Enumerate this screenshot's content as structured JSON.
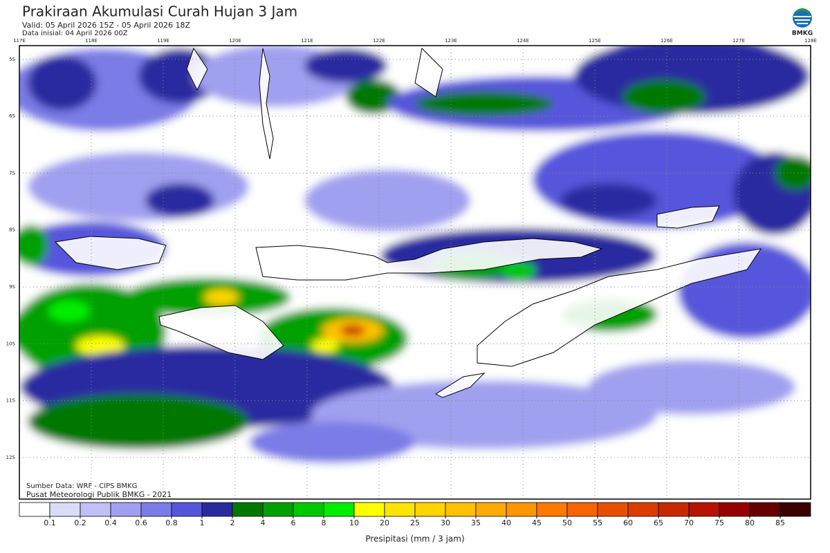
{
  "header": {
    "title": "Prakiraan Akumulasi Curah Hujan 3 Jam",
    "valid": "Valid: 05 April 2026 15Z - 05 April 2026 18Z",
    "initial": "Data inisial: 04 April 2026 00Z"
  },
  "logo": {
    "text": "BMKG"
  },
  "map": {
    "lon_range": [
      117,
      128
    ],
    "lat_range": [
      -4.76,
      -12.73
    ],
    "lon_ticks": [
      {
        "value": 117,
        "label": "117E"
      },
      {
        "value": 118,
        "label": "118E"
      },
      {
        "value": 119,
        "label": "119E"
      },
      {
        "value": 120,
        "label": "120E"
      },
      {
        "value": 121,
        "label": "121E"
      },
      {
        "value": 122,
        "label": "122E"
      },
      {
        "value": 123,
        "label": "123E"
      },
      {
        "value": 124,
        "label": "124E"
      },
      {
        "value": 125,
        "label": "125E"
      },
      {
        "value": 126,
        "label": "126E"
      },
      {
        "value": 127,
        "label": "127E"
      },
      {
        "value": 128,
        "label": "128E"
      }
    ],
    "lat_ticks": [
      {
        "value": -5,
        "label": "5S"
      },
      {
        "value": -6,
        "label": "6S"
      },
      {
        "value": -7,
        "label": "7S"
      },
      {
        "value": -8,
        "label": "8S"
      },
      {
        "value": -9,
        "label": "9S"
      },
      {
        "value": -10,
        "label": "10S"
      },
      {
        "value": -11,
        "label": "11S"
      },
      {
        "value": -12,
        "label": "12S"
      }
    ],
    "source": "Sumber Data: WRF - CIPS BMKG",
    "credit": "Pusat Meteorologi Publik BMKG - 2021"
  },
  "colorbar": {
    "label": "Presipitasi (mm / 3 jam)",
    "ticks": [
      0.1,
      0.2,
      0.4,
      0.6,
      0.8,
      1,
      2,
      4,
      6,
      8,
      10,
      20,
      25,
      30,
      35,
      40,
      45,
      50,
      55,
      60,
      65,
      70,
      75,
      80,
      85
    ],
    "colors": [
      "#ffffff",
      "#dcdcf8",
      "#c0c0f4",
      "#a0a0f0",
      "#7c7ce8",
      "#5656dc",
      "#2a2aa0",
      "#007800",
      "#00a000",
      "#00c800",
      "#00ee00",
      "#ffff00",
      "#ffe400",
      "#ffd400",
      "#ffc000",
      "#ffaa00",
      "#ff9600",
      "#ff7800",
      "#f46400",
      "#e85000",
      "#dc3c00",
      "#c82800",
      "#b41400",
      "#960000",
      "#640000",
      "#3a0000"
    ]
  }
}
